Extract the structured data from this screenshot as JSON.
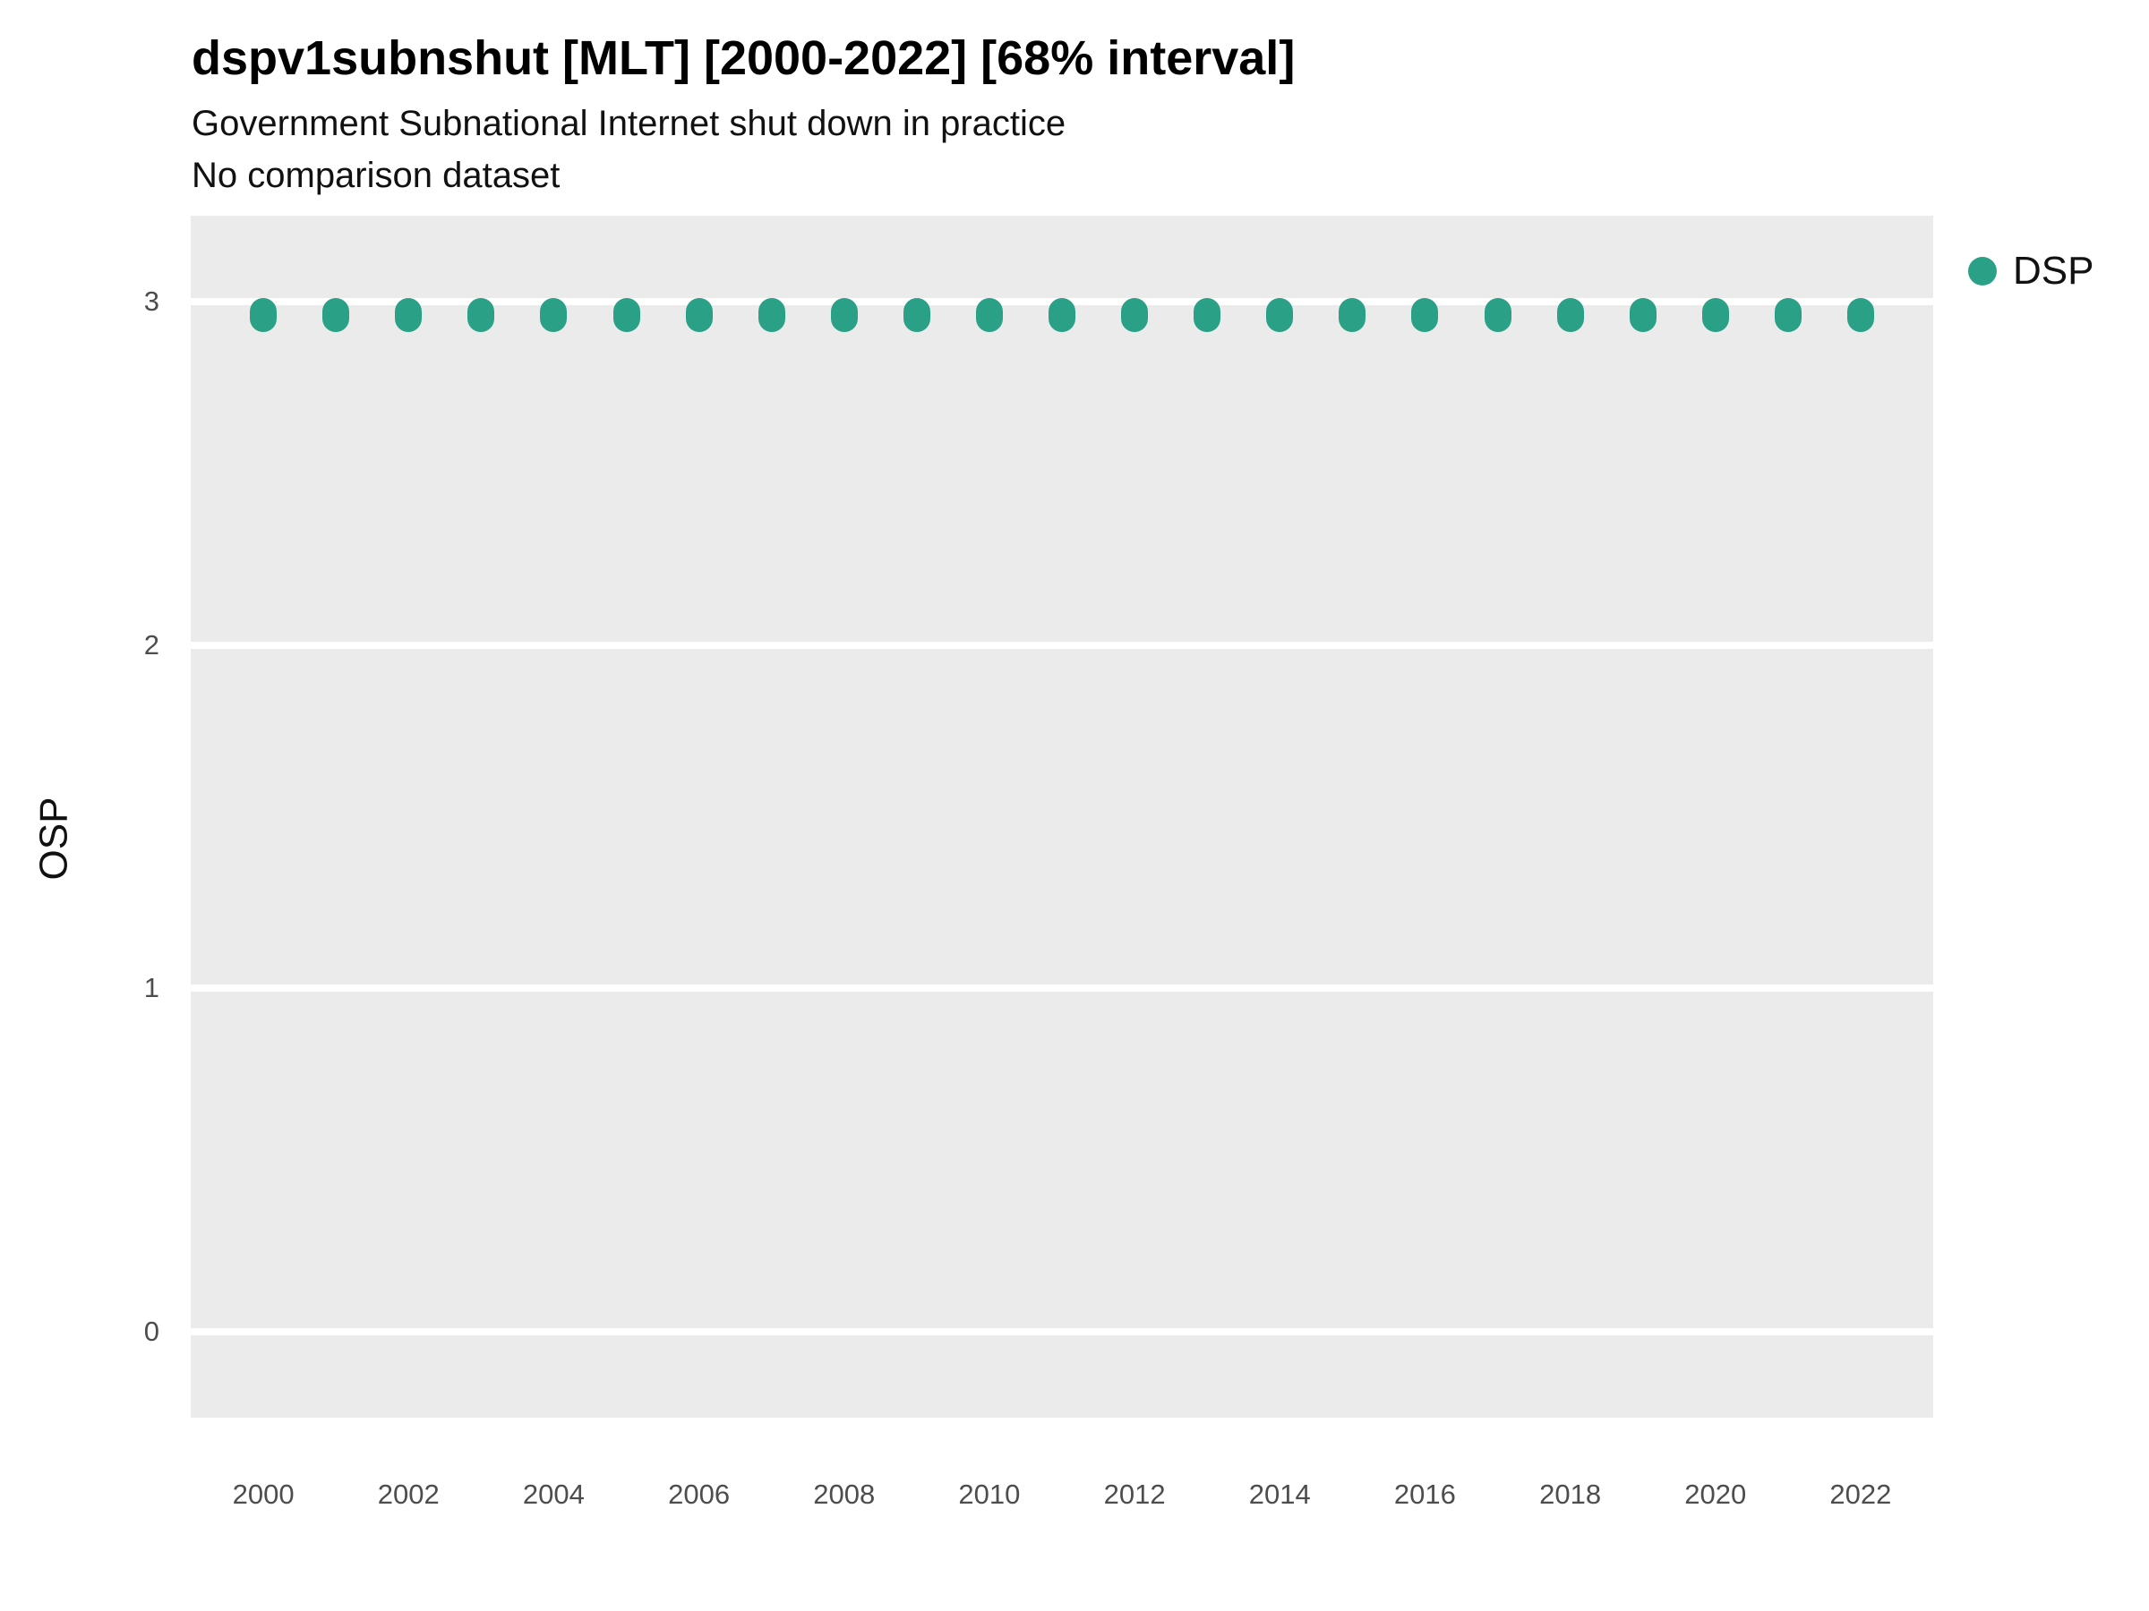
{
  "chart_data": {
    "type": "scatter",
    "title": "dspv1subnshut [MLT] [2000-2022] [68% interval]",
    "subtitle": "Government Subnational Internet shut down in practice",
    "note": "No comparison dataset",
    "xlabel": "",
    "ylabel": "OSP",
    "series": [
      {
        "name": "DSP",
        "color": "#2aa187",
        "x": [
          2000,
          2001,
          2002,
          2003,
          2004,
          2005,
          2006,
          2007,
          2008,
          2009,
          2010,
          2011,
          2012,
          2013,
          2014,
          2015,
          2016,
          2017,
          2018,
          2019,
          2020,
          2021,
          2022
        ],
        "y": [
          2.96,
          2.96,
          2.96,
          2.96,
          2.96,
          2.96,
          2.96,
          2.96,
          2.96,
          2.96,
          2.96,
          2.96,
          2.96,
          2.96,
          2.96,
          2.96,
          2.96,
          2.96,
          2.96,
          2.96,
          2.96,
          2.96,
          2.96
        ]
      }
    ],
    "xticks": [
      2000,
      2002,
      2004,
      2006,
      2008,
      2010,
      2012,
      2014,
      2016,
      2018,
      2020,
      2022
    ],
    "yticks": [
      0,
      1,
      2,
      3
    ],
    "xlim": [
      1999,
      2023
    ],
    "ylim": [
      -0.25,
      3.25
    ],
    "grid": "horizontal-major-white",
    "panel_bg": "#ebebeb",
    "legend_position": "right"
  }
}
